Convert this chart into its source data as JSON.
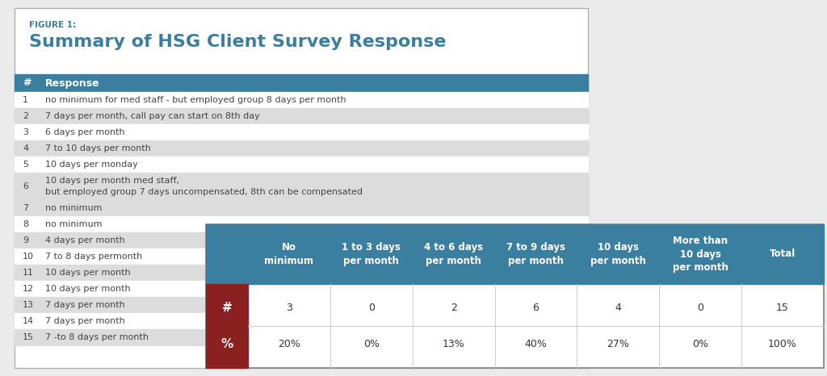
{
  "figure1_label": "FIGURE 1:",
  "title": "Summary of HSG Client Survey Response",
  "header_bg": "#3A7EA0",
  "header_text_color": "#FFFFFF",
  "header_col1": "#",
  "header_col2": "Response",
  "rows": [
    {
      "num": "1",
      "text": "no minimum for med staff - but employed group 8 days per month",
      "bg": "#FFFFFF",
      "double": false
    },
    {
      "num": "2",
      "text": "7 days per month, call pay can start on 8th day",
      "bg": "#DCDCDC",
      "double": false
    },
    {
      "num": "3",
      "text": "6 days per month",
      "bg": "#FFFFFF",
      "double": false
    },
    {
      "num": "4",
      "text": "7 to 10 days per month",
      "bg": "#DCDCDC",
      "double": false
    },
    {
      "num": "5",
      "text": "10 days per monday",
      "bg": "#FFFFFF",
      "double": false
    },
    {
      "num": "6",
      "text": "10 days per month med staff,",
      "bg": "#DCDCDC",
      "double": true,
      "text2": "but employed group 7 days uncompensated, 8th can be compensated"
    },
    {
      "num": "7",
      "text": "no minimum",
      "bg": "#DCDCDC",
      "double": false
    },
    {
      "num": "8",
      "text": "no minimum",
      "bg": "#FFFFFF",
      "double": false
    },
    {
      "num": "9",
      "text": "4 days per month",
      "bg": "#DCDCDC",
      "double": false
    },
    {
      "num": "10",
      "text": "7 to 8 days permonth",
      "bg": "#FFFFFF",
      "double": false
    },
    {
      "num": "11",
      "text": "10 days per month",
      "bg": "#DCDCDC",
      "double": false
    },
    {
      "num": "12",
      "text": "10 days per month",
      "bg": "#FFFFFF",
      "double": false
    },
    {
      "num": "13",
      "text": "7 days per month",
      "bg": "#DCDCDC",
      "double": false
    },
    {
      "num": "14",
      "text": "7 days per month",
      "bg": "#FFFFFF",
      "double": false
    },
    {
      "num": "15",
      "text": "7 -to 8 days per month",
      "bg": "#DCDCDC",
      "double": false
    }
  ],
  "summary_header_bg": "#3A7EA0",
  "summary_header_text": "#FFFFFF",
  "summary_label_bg": "#8B2020",
  "summary_label_text": "#FFFFFF",
  "summary_col_headers": [
    "No\nminimum",
    "1 to 3 days\nper month",
    "4 to 6 days\nper month",
    "7 to 9 days\nper month",
    "10 days\nper month",
    "More than\n10 days\nper month",
    "Total"
  ],
  "summary_counts": [
    "3",
    "0",
    "2",
    "6",
    "4",
    "0",
    "15"
  ],
  "summary_pcts": [
    "20%",
    "0%",
    "13%",
    "40%",
    "27%",
    "0%",
    "100%"
  ],
  "outer_bg": "#EBEBEB",
  "card_bg": "#FFFFFF",
  "card_border": "#B0B0B0"
}
